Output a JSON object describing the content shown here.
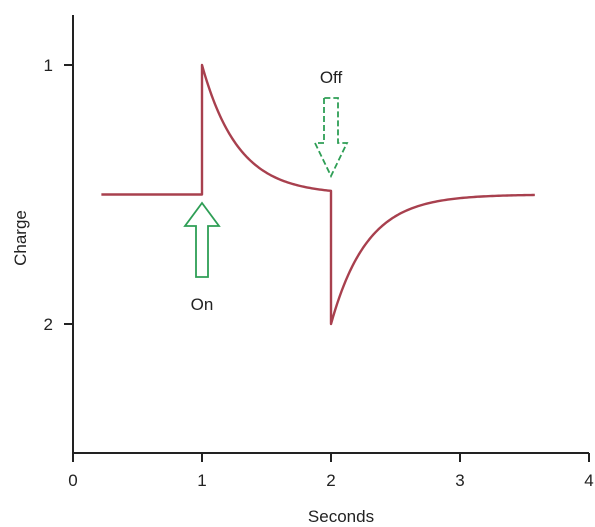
{
  "chart_data": {
    "type": "line",
    "title": "",
    "xlabel": "Seconds",
    "ylabel": "Charge",
    "xlim": [
      0,
      4
    ],
    "ylim": [
      0,
      3
    ],
    "y_inverted": true,
    "grid": false,
    "x_ticks": [
      0,
      1,
      2,
      3,
      4
    ],
    "x_tick_labels": [
      "0",
      "1",
      "2",
      "3",
      "4"
    ],
    "y_ticks": [
      1,
      2
    ],
    "y_tick_labels": [
      "1",
      "2"
    ],
    "series": [
      {
        "color": "#a8404e",
        "baseline": 1.5,
        "start": 0.22,
        "end": 3.58,
        "on_time": 1.0,
        "off_time": 2.0,
        "on_peak": 1.0,
        "off_peak": 2.0,
        "decay_tau": 0.28
      }
    ],
    "annotations": [
      {
        "label": "On",
        "x": 1.0,
        "arrow_style": "solid",
        "color": "#2e9e55"
      },
      {
        "label": "Off",
        "x": 2.0,
        "arrow_style": "dashed",
        "color": "#2e9e55"
      }
    ]
  }
}
